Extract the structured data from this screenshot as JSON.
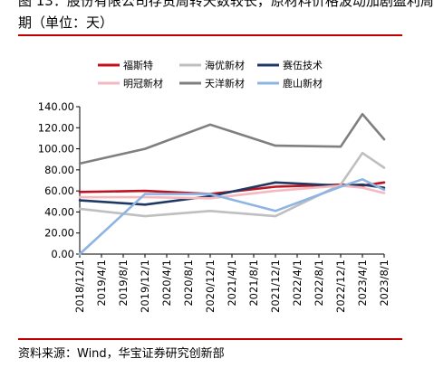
{
  "header": {
    "title_line1": "图 13：股份有限公司存货周转天数较长，原材料价格波动加剧盈利周",
    "title_line2": "期（单位：天）"
  },
  "footer": {
    "source": "资料来源：Wind，华宝证券研究创新部"
  },
  "colors": {
    "rule": "#c00000"
  },
  "chart_data": {
    "type": "line",
    "title": "",
    "xlabel": "",
    "ylabel": "",
    "ylim": [
      0,
      140
    ],
    "y_ticks": [
      "0.00",
      "20.00",
      "40.00",
      "60.00",
      "80.00",
      "100.00",
      "120.00",
      "140.00"
    ],
    "categories": [
      "2018/12/1",
      "2019/4/1",
      "2019/8/1",
      "2019/12/1",
      "2020/4/1",
      "2020/8/1",
      "2020/12/1",
      "2021/4/1",
      "2021/8/1",
      "2021/12/1",
      "2022/4/1",
      "2022/8/1",
      "2022/12/1",
      "2023/4/1",
      "2023/8/1"
    ],
    "grid": false,
    "legend_position": "top",
    "series": [
      {
        "name": "福斯特",
        "color": "#c0111f",
        "points": [
          [
            0,
            59
          ],
          [
            3,
            60
          ],
          [
            6,
            57
          ],
          [
            9,
            64
          ],
          [
            12,
            66
          ],
          [
            13,
            65
          ],
          [
            14,
            68
          ]
        ]
      },
      {
        "name": "海优新材",
        "color": "#bfbfbf",
        "points": [
          [
            0,
            43
          ],
          [
            3,
            36
          ],
          [
            6,
            41
          ],
          [
            9,
            36
          ],
          [
            12,
            66
          ],
          [
            13,
            96
          ],
          [
            14,
            82
          ]
        ]
      },
      {
        "name": "赛伍技术",
        "color": "#1f3864",
        "points": [
          [
            0,
            51
          ],
          [
            3,
            47
          ],
          [
            6,
            55
          ],
          [
            9,
            68
          ],
          [
            12,
            65
          ],
          [
            13,
            66
          ],
          [
            14,
            63
          ]
        ]
      },
      {
        "name": "明冠新材",
        "color": "#f4b8c0",
        "points": [
          [
            0,
            54
          ],
          [
            3,
            54
          ],
          [
            6,
            53
          ],
          [
            9,
            60
          ],
          [
            12,
            65
          ],
          [
            13,
            63
          ],
          [
            14,
            58
          ]
        ]
      },
      {
        "name": "天洋新材",
        "color": "#7f7f7f",
        "points": [
          [
            0,
            86
          ],
          [
            3,
            100
          ],
          [
            6,
            123
          ],
          [
            9,
            103
          ],
          [
            12,
            102
          ],
          [
            13,
            133
          ],
          [
            14,
            109
          ]
        ]
      },
      {
        "name": "鹿山新材",
        "color": "#8eb4e3",
        "points": [
          [
            0,
            0
          ],
          [
            3,
            57
          ],
          [
            6,
            57
          ],
          [
            9,
            41
          ],
          [
            12,
            64
          ],
          [
            13,
            71
          ],
          [
            14,
            61
          ]
        ]
      }
    ]
  }
}
